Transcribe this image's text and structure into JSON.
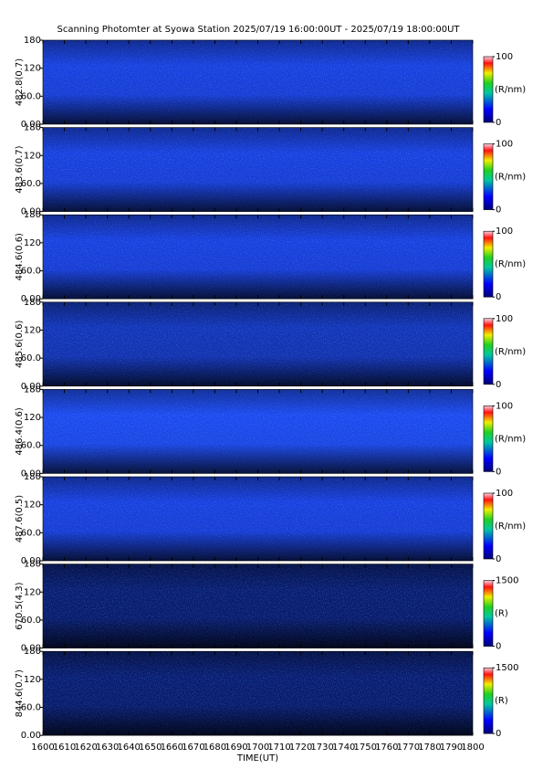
{
  "chart_data": [
    {
      "type": "image",
      "title": "Scanning Photomter at Syowa Station 2025/07/19 16:00:00UT - 2025/07/19 18:00:00UT",
      "ylabel": "482.8(0.7)",
      "color": "#1a3ee0",
      "ylim": [
        0,
        180
      ],
      "yticks": [
        {
          "value": 0,
          "label": "0.00"
        },
        {
          "value": 60,
          "label": "60.0"
        },
        120,
        180
      ],
      "xlim": [
        1600,
        1800
      ],
      "xticks": [
        1600,
        1610,
        1620,
        1630,
        1640,
        1650,
        1660,
        1670,
        1680,
        1690,
        1700,
        1710,
        1720,
        1730,
        1740,
        1750,
        1760,
        1770,
        1780,
        1790,
        1800
      ],
      "colorbar": {
        "label": "(R/nm)",
        "lim": [
          0,
          100
        ],
        "ticks": [
          0,
          100
        ]
      }
    },
    {
      "type": "image",
      "ylabel": "483.6(0.7)",
      "color": "#1a3ee0",
      "ylim": [
        0,
        180
      ],
      "yticks": [
        {
          "value": 0,
          "label": "0.00"
        },
        {
          "value": 60,
          "label": "60.0"
        },
        120,
        180
      ],
      "xlim": [
        1600,
        1800
      ],
      "xticks": [
        1600,
        1610,
        1620,
        1630,
        1640,
        1650,
        1660,
        1670,
        1680,
        1690,
        1700,
        1710,
        1720,
        1730,
        1740,
        1750,
        1760,
        1770,
        1780,
        1790,
        1800
      ],
      "colorbar": {
        "label": "(R/nm)",
        "lim": [
          0,
          100
        ],
        "ticks": [
          0,
          100
        ]
      }
    },
    {
      "type": "image",
      "ylabel": "484.6(0.6)",
      "color": "#1a3ee0",
      "ylim": [
        0,
        180
      ],
      "yticks": [
        {
          "value": 0,
          "label": "0.00"
        },
        {
          "value": 60,
          "label": "60.0"
        },
        120,
        180
      ],
      "xlim": [
        1600,
        1800
      ],
      "xticks": [
        1600,
        1610,
        1620,
        1630,
        1640,
        1650,
        1660,
        1670,
        1680,
        1690,
        1700,
        1710,
        1720,
        1730,
        1740,
        1750,
        1760,
        1770,
        1780,
        1790,
        1800
      ],
      "colorbar": {
        "label": "(R/nm)",
        "lim": [
          0,
          100
        ],
        "ticks": [
          0,
          100
        ]
      }
    },
    {
      "type": "image",
      "ylabel": "485.6(0.6)",
      "color": "#1432b8",
      "ylim": [
        0,
        180
      ],
      "yticks": [
        {
          "value": 0,
          "label": "0.00"
        },
        {
          "value": 60,
          "label": "60.0"
        },
        120,
        180
      ],
      "xlim": [
        1600,
        1800
      ],
      "xticks": [
        1600,
        1610,
        1620,
        1630,
        1640,
        1650,
        1660,
        1670,
        1680,
        1690,
        1700,
        1710,
        1720,
        1730,
        1740,
        1750,
        1760,
        1770,
        1780,
        1790,
        1800
      ],
      "colorbar": {
        "label": "(R/nm)",
        "lim": [
          0,
          100
        ],
        "ticks": [
          0,
          100
        ]
      }
    },
    {
      "type": "image",
      "ylabel": "486.4(0.6)",
      "color": "#1e48f0",
      "ylim": [
        0,
        180
      ],
      "yticks": [
        {
          "value": 0,
          "label": "0.00"
        },
        {
          "value": 60,
          "label": "60.0"
        },
        120,
        180
      ],
      "xlim": [
        1600,
        1800
      ],
      "xticks": [
        1600,
        1610,
        1620,
        1630,
        1640,
        1650,
        1660,
        1670,
        1680,
        1690,
        1700,
        1710,
        1720,
        1730,
        1740,
        1750,
        1760,
        1770,
        1780,
        1790,
        1800
      ],
      "colorbar": {
        "label": "(R/nm)",
        "lim": [
          0,
          100
        ],
        "ticks": [
          0,
          100
        ]
      }
    },
    {
      "type": "image",
      "ylabel": "487.6(0.5)",
      "color": "#1a3ee0",
      "ylim": [
        0,
        180
      ],
      "yticks": [
        {
          "value": 0,
          "label": "0.00"
        },
        {
          "value": 60,
          "label": "60.0"
        },
        120,
        180
      ],
      "xlim": [
        1600,
        1800
      ],
      "xticks": [
        1600,
        1610,
        1620,
        1630,
        1640,
        1650,
        1660,
        1670,
        1680,
        1690,
        1700,
        1710,
        1720,
        1730,
        1740,
        1750,
        1760,
        1770,
        1780,
        1790,
        1800
      ],
      "colorbar": {
        "label": "(R/nm)",
        "lim": [
          0,
          100
        ],
        "ticks": [
          0,
          100
        ]
      }
    },
    {
      "type": "image",
      "ylabel": "670.5(4.3)",
      "color": "#0a1a70",
      "ylim": [
        0,
        180
      ],
      "yticks": [
        {
          "value": 0,
          "label": "0.00"
        },
        {
          "value": 60,
          "label": "60.0"
        },
        120,
        180
      ],
      "xlim": [
        1600,
        1800
      ],
      "xticks": [
        1600,
        1610,
        1620,
        1630,
        1640,
        1650,
        1660,
        1670,
        1680,
        1690,
        1700,
        1710,
        1720,
        1730,
        1740,
        1750,
        1760,
        1770,
        1780,
        1790,
        1800
      ],
      "colorbar": {
        "label": "(R)",
        "lim": [
          0,
          1500
        ],
        "ticks": [
          0,
          1500
        ]
      }
    },
    {
      "type": "image",
      "ylabel": "844.6(0.7)",
      "xlabel": "TIME(UT)",
      "color": "#0a1a70",
      "ylim": [
        0,
        180
      ],
      "yticks": [
        {
          "value": 0,
          "label": "0.00"
        },
        {
          "value": 60,
          "label": "60.0"
        },
        120,
        180
      ],
      "xlim": [
        1600,
        1800
      ],
      "xticks": [
        {
          "value": 1600,
          "label": "1600"
        },
        1610,
        1620,
        1630,
        1640,
        1650,
        1660,
        1670,
        1680,
        1690,
        1700,
        1710,
        1720,
        1730,
        1740,
        1750,
        1760,
        1770,
        1780,
        1790,
        1800
      ],
      "colorbar": {
        "label": "(R)",
        "lim": [
          0,
          1500
        ],
        "ticks": [
          0,
          1500
        ]
      }
    }
  ]
}
